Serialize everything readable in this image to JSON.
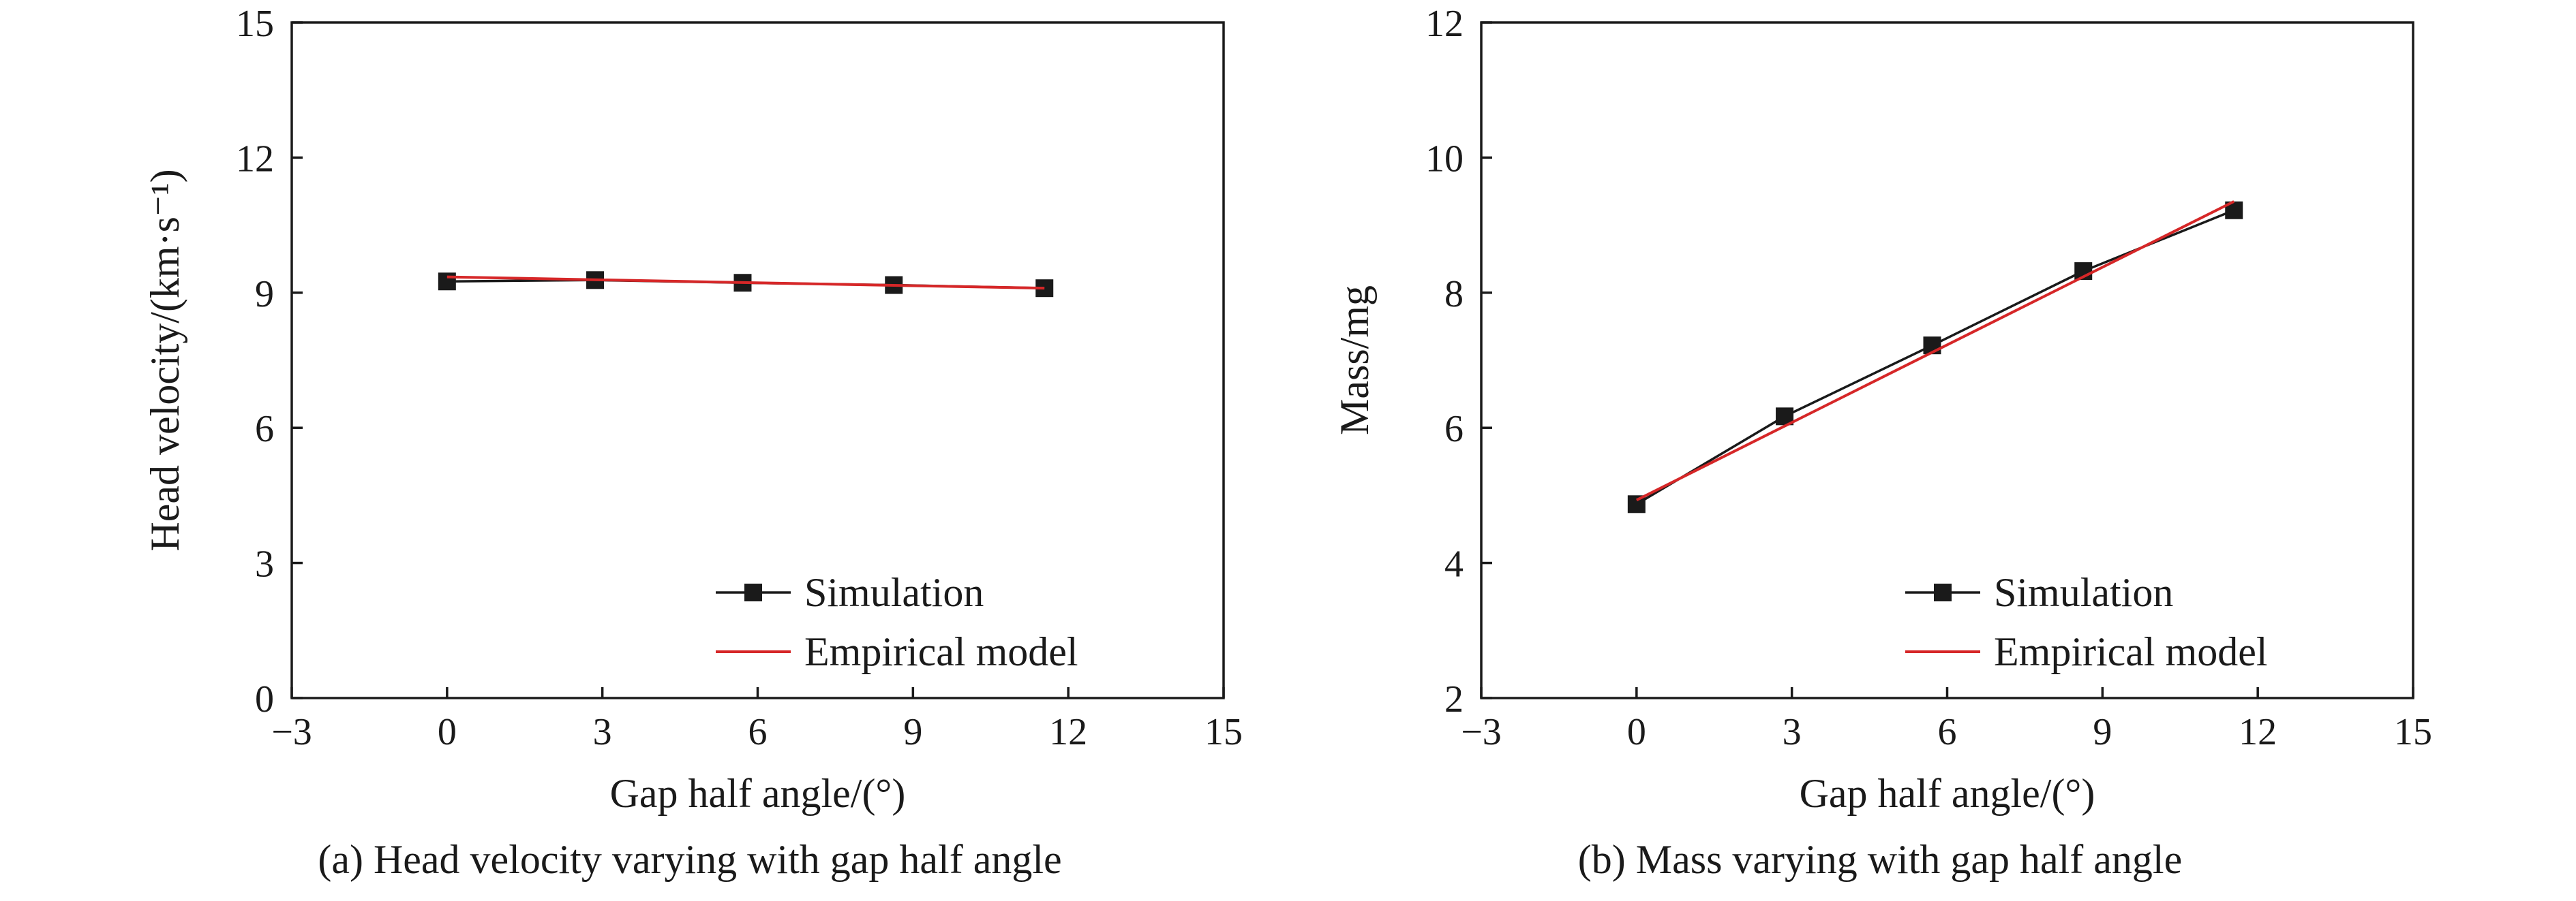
{
  "chart_data": [
    {
      "type": "line",
      "xlabel": "Gap half angle/(°)",
      "ylabel": "Head velocity/(km·s⁻¹)",
      "caption": "(a) Head velocity varying with gap half angle",
      "xlim": [
        -3,
        15
      ],
      "ylim": [
        0,
        15
      ],
      "xticks": [
        -3,
        0,
        3,
        6,
        9,
        12,
        15
      ],
      "yticks": [
        0,
        3,
        6,
        9,
        12,
        15
      ],
      "xtick_labels": [
        "−3",
        "0",
        "3",
        "6",
        "9",
        "12",
        "15"
      ],
      "ytick_labels": [
        "0",
        "3",
        "6",
        "9",
        "12",
        "15"
      ],
      "legend_position": "bottom-right",
      "series": [
        {
          "name": "Simulation",
          "color": "#1a1a1a",
          "marker": "square",
          "x": [
            0,
            2.86,
            5.71,
            8.63,
            11.54
          ],
          "y": [
            9.25,
            9.28,
            9.22,
            9.17,
            9.1
          ]
        },
        {
          "name": "Empirical model",
          "color": "#d62728",
          "marker": "none",
          "x": [
            0,
            11.54
          ],
          "y": [
            9.35,
            9.1
          ]
        }
      ]
    },
    {
      "type": "line",
      "xlabel": "Gap half angle/(°)",
      "ylabel": "Mass/mg",
      "caption": "(b) Mass varying with gap half angle",
      "xlim": [
        -3,
        15
      ],
      "ylim": [
        2,
        12
      ],
      "xticks": [
        -3,
        0,
        3,
        6,
        9,
        12,
        15
      ],
      "yticks": [
        2,
        4,
        6,
        8,
        10,
        12
      ],
      "xtick_labels": [
        "−3",
        "0",
        "3",
        "6",
        "9",
        "12",
        "15"
      ],
      "ytick_labels": [
        "2",
        "4",
        "6",
        "8",
        "10",
        "12"
      ],
      "legend_position": "bottom-right",
      "series": [
        {
          "name": "Simulation",
          "color": "#1a1a1a",
          "marker": "square",
          "x": [
            0,
            2.86,
            5.71,
            8.63,
            11.54
          ],
          "y": [
            4.87,
            6.17,
            7.22,
            8.32,
            9.22
          ]
        },
        {
          "name": "Empirical model",
          "color": "#d62728",
          "marker": "none",
          "x": [
            0,
            11.54
          ],
          "y": [
            4.93,
            9.35
          ]
        }
      ]
    }
  ]
}
